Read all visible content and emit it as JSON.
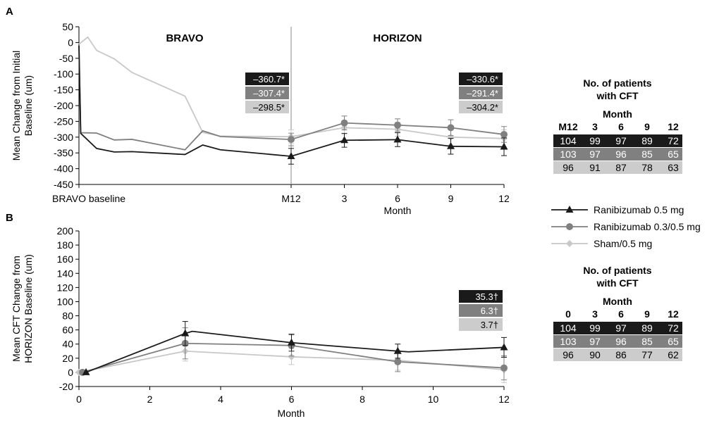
{
  "colors": {
    "ranibizumab_05": "#1a1a1a",
    "ranibizumab_03": "#808080",
    "sham": "#c8c8c8",
    "row1_bg": "#1a1a1a",
    "row2_bg": "#808080",
    "row3_bg": "#cccccc"
  },
  "legend": {
    "items": [
      {
        "label": "Ranibizumab 0.5 mg",
        "marker": "triangle",
        "color": "#1a1a1a"
      },
      {
        "label": "Ranibizumab 0.3/0.5 mg",
        "marker": "circle",
        "color": "#808080"
      },
      {
        "label": "Sham/0.5 mg",
        "marker": "diamond",
        "color": "#c8c8c8"
      }
    ]
  },
  "tables": [
    {
      "title_line1": "No. of patients",
      "title_line2": "with CFT",
      "subtitle": "Month",
      "headers": [
        "M12",
        "3",
        "6",
        "9",
        "12"
      ],
      "rows": [
        [
          "104",
          "99",
          "97",
          "89",
          "72"
        ],
        [
          "103",
          "97",
          "96",
          "85",
          "65"
        ],
        [
          "96",
          "91",
          "87",
          "78",
          "63"
        ]
      ]
    },
    {
      "title_line1": "No. of patients",
      "title_line2": "with CFT",
      "subtitle": "Month",
      "headers": [
        "0",
        "3",
        "6",
        "9",
        "12"
      ],
      "rows": [
        [
          "104",
          "99",
          "97",
          "89",
          "72"
        ],
        [
          "103",
          "97",
          "96",
          "85",
          "65"
        ],
        [
          "96",
          "90",
          "86",
          "77",
          "62"
        ]
      ]
    }
  ],
  "chart_data": [
    {
      "type": "line",
      "panel_label": "A",
      "ylabel": "Mean Change from Initial Baseline (um)",
      "ylabel_lines": [
        "Mean Change from Initial",
        "Baseline (um)"
      ],
      "xlabel": "Month",
      "ylim": [
        -450,
        50
      ],
      "yticks": [
        50,
        0,
        -50,
        -100,
        -150,
        -200,
        -250,
        -300,
        -350,
        -400,
        -450
      ],
      "x_tick_labels": [
        "BRAVO baseline",
        "M12",
        "3",
        "6",
        "9",
        "12"
      ],
      "period_labels": [
        "BRAVO",
        "HORIZON"
      ],
      "series": [
        {
          "name": "Ranibizumab 0.5 mg",
          "marker": "triangle",
          "bravo_phase": [
            {
              "m": 0,
              "y": -10
            },
            {
              "m": 0.1,
              "y": -288
            },
            {
              "m": 1,
              "y": -336
            },
            {
              "m": 2,
              "y": -347
            },
            {
              "m": 3,
              "y": -346
            },
            {
              "m": 6,
              "y": -355
            },
            {
              "m": 7,
              "y": -325
            },
            {
              "m": 8,
              "y": -340
            },
            {
              "m": 12,
              "y": -360.7
            }
          ],
          "horizon_phase": [
            {
              "m": 0,
              "y": -360.7,
              "err": 25
            },
            {
              "m": 3,
              "y": -310,
              "err": 22
            },
            {
              "m": 6,
              "y": -308,
              "err": 22
            },
            {
              "m": 9,
              "y": -329,
              "err": 25
            },
            {
              "m": 12,
              "y": -330.6,
              "err": 28
            }
          ]
        },
        {
          "name": "Ranibizumab 0.3/0.5 mg",
          "marker": "circle",
          "bravo_phase": [
            {
              "m": 0,
              "y": -10
            },
            {
              "m": 0.1,
              "y": -286
            },
            {
              "m": 1,
              "y": -287
            },
            {
              "m": 2,
              "y": -309
            },
            {
              "m": 3,
              "y": -307
            },
            {
              "m": 6,
              "y": -340
            },
            {
              "m": 7,
              "y": -280
            },
            {
              "m": 8,
              "y": -298
            },
            {
              "m": 12,
              "y": -307.4
            }
          ],
          "horizon_phase": [
            {
              "m": 0,
              "y": -307.4,
              "err": 20
            },
            {
              "m": 3,
              "y": -255,
              "err": 22
            },
            {
              "m": 6,
              "y": -262,
              "err": 20
            },
            {
              "m": 9,
              "y": -270,
              "err": 25
            },
            {
              "m": 12,
              "y": -291.4,
              "err": 25
            }
          ]
        },
        {
          "name": "Sham/0.5 mg",
          "marker": "diamond",
          "bravo_phase": [
            {
              "m": 0,
              "y": -5
            },
            {
              "m": 0.5,
              "y": 17
            },
            {
              "m": 1,
              "y": -25
            },
            {
              "m": 2,
              "y": -52
            },
            {
              "m": 3,
              "y": -95
            },
            {
              "m": 6,
              "y": -170
            },
            {
              "m": 7,
              "y": -285
            },
            {
              "m": 8,
              "y": -297
            },
            {
              "m": 12,
              "y": -298.5
            }
          ],
          "horizon_phase": [
            {
              "m": 0,
              "y": -298.5,
              "err": 22
            },
            {
              "m": 3,
              "y": -270,
              "err": 22
            },
            {
              "m": 6,
              "y": -275,
              "err": 22
            },
            {
              "m": 9,
              "y": -300,
              "err": 25
            },
            {
              "m": 12,
              "y": -304.2,
              "err": 28
            }
          ]
        }
      ],
      "annotations": {
        "m12": [
          "–360.7*",
          "–307.4*",
          "–298.5*"
        ],
        "m12_horizon": [
          "–330.6*",
          "–291.4*",
          "–304.2*"
        ]
      }
    },
    {
      "type": "line",
      "panel_label": "B",
      "ylabel": "Mean CFT Change from HORIZON Baseline (um)",
      "ylabel_lines": [
        "Mean CFT Change from",
        "HORIZON Baseline (um)"
      ],
      "xlabel": "Month",
      "xlim": [
        0,
        12
      ],
      "ylim": [
        -20,
        200
      ],
      "xticks": [
        0,
        2,
        4,
        6,
        8,
        10,
        12
      ],
      "yticks": [
        200,
        180,
        160,
        140,
        120,
        100,
        80,
        60,
        40,
        20,
        0,
        -20
      ],
      "series": [
        {
          "name": "Ranibizumab 0.5 mg",
          "marker": "triangle",
          "x": [
            0.2,
            3,
            3.2,
            6,
            9,
            9.3,
            12
          ],
          "y": [
            0,
            55,
            58,
            42,
            30,
            29,
            35.3
          ],
          "err": [
            0,
            17,
            0,
            12,
            10,
            0,
            14
          ],
          "markers_at": [
            0,
            1,
            3,
            4,
            6
          ]
        },
        {
          "name": "Ranibizumab 0.3/0.5 mg",
          "marker": "circle",
          "x": [
            0.1,
            3,
            6,
            9,
            12
          ],
          "y": [
            0,
            41,
            38,
            15,
            6.3
          ],
          "err": [
            0,
            22,
            15,
            14,
            17
          ],
          "markers_at": [
            0,
            1,
            2,
            3,
            4
          ]
        },
        {
          "name": "Sham/0.5 mg",
          "marker": "diamond",
          "x": [
            0,
            3,
            6,
            9,
            12
          ],
          "y": [
            0,
            30,
            22,
            17,
            3.7
          ],
          "err": [
            0,
            14,
            11,
            14,
            18
          ],
          "markers_at": [
            0,
            1,
            2,
            3,
            4
          ]
        }
      ],
      "annotations": [
        "35.3†",
        "6.3†",
        "3.7†"
      ]
    }
  ]
}
